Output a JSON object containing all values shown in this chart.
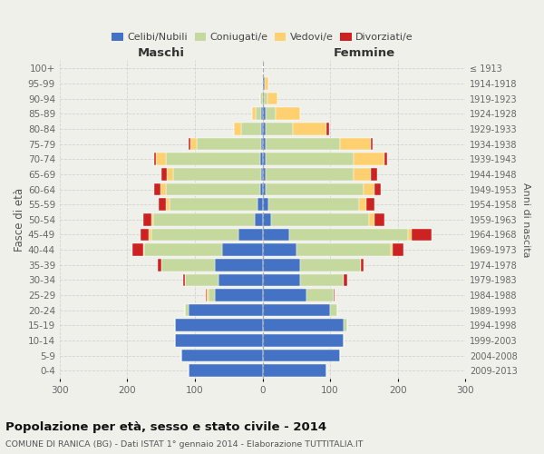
{
  "age_groups": [
    "0-4",
    "5-9",
    "10-14",
    "15-19",
    "20-24",
    "25-29",
    "30-34",
    "35-39",
    "40-44",
    "45-49",
    "50-54",
    "55-59",
    "60-64",
    "65-69",
    "70-74",
    "75-79",
    "80-84",
    "85-89",
    "90-94",
    "95-99",
    "100+"
  ],
  "birth_years": [
    "2009-2013",
    "2004-2008",
    "1999-2003",
    "1994-1998",
    "1989-1993",
    "1984-1988",
    "1979-1983",
    "1974-1978",
    "1969-1973",
    "1964-1968",
    "1959-1963",
    "1954-1958",
    "1949-1953",
    "1944-1948",
    "1939-1943",
    "1934-1938",
    "1929-1933",
    "1924-1928",
    "1919-1923",
    "1914-1918",
    "≤ 1913"
  ],
  "males": {
    "celibi": [
      110,
      120,
      130,
      130,
      110,
      70,
      65,
      70,
      60,
      35,
      12,
      8,
      3,
      2,
      3,
      2,
      2,
      2,
      0,
      0,
      0
    ],
    "coniugati": [
      0,
      0,
      0,
      0,
      5,
      10,
      50,
      80,
      115,
      130,
      150,
      130,
      140,
      130,
      140,
      95,
      30,
      8,
      3,
      0,
      0
    ],
    "vedovi": [
      0,
      0,
      0,
      0,
      0,
      2,
      0,
      0,
      2,
      3,
      3,
      5,
      8,
      10,
      15,
      10,
      10,
      5,
      0,
      0,
      0
    ],
    "divorziati": [
      0,
      0,
      0,
      0,
      0,
      2,
      3,
      5,
      15,
      12,
      12,
      10,
      10,
      8,
      3,
      3,
      0,
      0,
      0,
      0,
      0
    ]
  },
  "females": {
    "nubili": [
      95,
      115,
      120,
      120,
      100,
      65,
      55,
      55,
      50,
      40,
      12,
      8,
      5,
      5,
      5,
      5,
      5,
      5,
      2,
      3,
      0
    ],
    "coniugate": [
      0,
      0,
      0,
      5,
      10,
      40,
      65,
      90,
      140,
      175,
      145,
      135,
      145,
      130,
      130,
      110,
      40,
      15,
      5,
      0,
      0
    ],
    "vedove": [
      0,
      0,
      0,
      0,
      0,
      0,
      0,
      0,
      3,
      5,
      8,
      10,
      15,
      25,
      45,
      45,
      50,
      35,
      15,
      5,
      0
    ],
    "divorziate": [
      0,
      0,
      0,
      0,
      0,
      2,
      5,
      5,
      15,
      30,
      15,
      12,
      10,
      10,
      5,
      3,
      3,
      0,
      0,
      0,
      0
    ]
  },
  "colors": {
    "celibi_nubili": "#4472C4",
    "coniugati_e": "#C5D89D",
    "vedovi_e": "#FFD070",
    "divorziati_e": "#CC2222"
  },
  "xlim": 300,
  "title": "Popolazione per età, sesso e stato civile - 2014",
  "subtitle": "COMUNE DI RANICA (BG) - Dati ISTAT 1° gennaio 2014 - Elaborazione TUTTITALIA.IT",
  "ylabel_left": "Fasce di età",
  "ylabel_right": "Anni di nascita",
  "xlabel_left": "Maschi",
  "xlabel_right": "Femmine",
  "background_color": "#f0f0eb"
}
